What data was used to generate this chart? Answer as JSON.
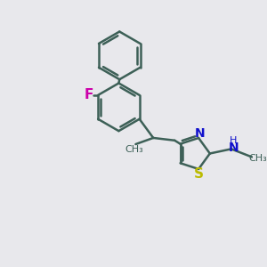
{
  "bg_color": "#e8e8ec",
  "bond_color": "#3d6057",
  "bond_width": 1.8,
  "atom_colors": {
    "F": "#cc00aa",
    "N": "#1010cc",
    "S": "#bbbb00",
    "C": "#3d6057"
  },
  "font_size": 9,
  "fig_size": [
    3.0,
    3.0
  ],
  "dpi": 100,
  "xlim": [
    0,
    10
  ],
  "ylim": [
    0,
    10
  ]
}
